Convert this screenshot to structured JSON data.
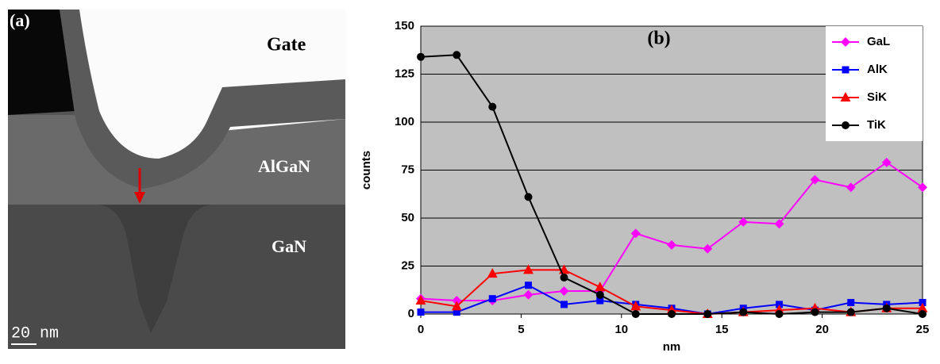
{
  "image_panel": {
    "label": "(a)",
    "gate": "Gate",
    "algan": "AlGaN",
    "gan": "GaN",
    "scale_bar": "20 nm"
  },
  "chart_data": {
    "type": "line",
    "annotation": "(b)",
    "x_label": "nm",
    "y_label": "counts",
    "x": [
      0,
      1.79,
      3.57,
      5.36,
      7.14,
      8.93,
      10.71,
      12.5,
      14.29,
      16.07,
      17.86,
      19.64,
      21.43,
      23.21,
      25
    ],
    "series": [
      {
        "name": "GaL",
        "color": "#ff00ff",
        "marker": "diamond",
        "values": [
          8,
          7,
          7,
          10,
          12,
          12,
          42,
          36,
          34,
          48,
          47,
          70,
          66,
          79,
          66
        ]
      },
      {
        "name": "AlK",
        "color": "#0000ff",
        "marker": "square",
        "values": [
          1,
          1,
          8,
          15,
          5,
          7,
          5,
          3,
          0,
          3,
          5,
          2,
          6,
          5,
          6
        ]
      },
      {
        "name": "SiK",
        "color": "#ff0000",
        "marker": "triangle",
        "values": [
          7,
          4,
          21,
          23,
          23,
          14,
          4,
          2,
          0,
          1,
          2,
          3,
          1,
          3,
          3
        ]
      },
      {
        "name": "TiK",
        "color": "#000000",
        "marker": "circle",
        "values": [
          134,
          135,
          108,
          61,
          19,
          10,
          0,
          0,
          0,
          1,
          0,
          1,
          1,
          3,
          0
        ]
      }
    ],
    "xlim": [
      0,
      25
    ],
    "xticks": [
      0,
      5,
      10,
      15,
      20,
      25
    ],
    "ylim": [
      0,
      150
    ],
    "yticks": [
      0,
      25,
      50,
      75,
      100,
      125,
      150
    ],
    "grid": true,
    "legend": "top-right",
    "background": "#c0c0c0"
  }
}
